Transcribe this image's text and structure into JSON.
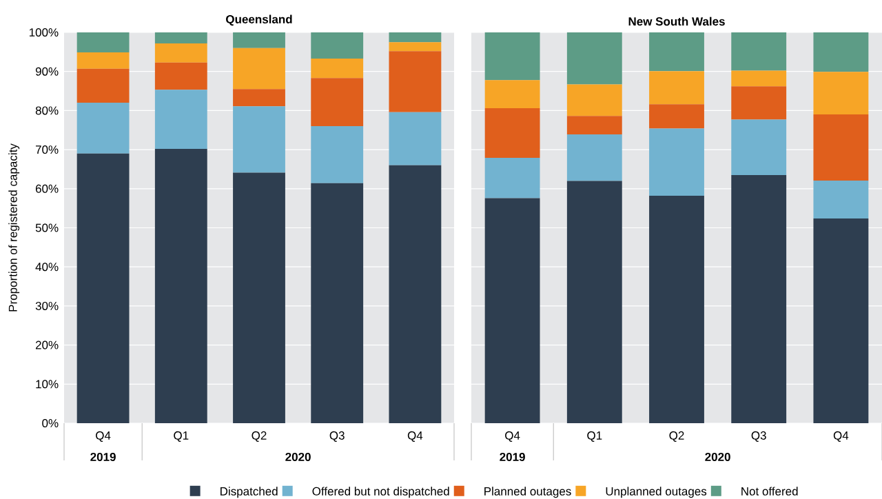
{
  "chart_data": [
    {
      "type": "bar",
      "title": "Queensland",
      "ylabel": "Proportion of registered capacity",
      "stacked": true,
      "grid": "y",
      "legend": "bottom",
      "categories": [
        "Q4",
        "Q1",
        "Q2",
        "Q3",
        "Q4"
      ],
      "annotations": [
        "2019",
        "2020"
      ],
      "ylim": [
        0,
        100
      ],
      "yticks": [
        {
          "value": 0,
          "label": "0%"
        },
        {
          "value": 10,
          "label": "10%"
        },
        {
          "value": 20,
          "label": "20%"
        },
        {
          "value": 30,
          "label": "30%"
        },
        {
          "value": 40,
          "label": "40%"
        },
        {
          "value": 50,
          "label": "50%"
        },
        {
          "value": 60,
          "label": "60%"
        },
        {
          "value": 70,
          "label": "70%"
        },
        {
          "value": 80,
          "label": "80%"
        },
        {
          "value": 90,
          "label": "90%"
        },
        {
          "value": 100,
          "label": "100%"
        }
      ],
      "series": [
        {
          "name": "Dispatched",
          "color": "#2e3e50",
          "values": [
            69.0,
            70.2,
            64.1,
            61.4,
            66.0
          ]
        },
        {
          "name": "Offered but not dispatched",
          "color": "#72b3d0",
          "values": [
            13.0,
            15.1,
            17.0,
            14.6,
            13.6
          ]
        },
        {
          "name": "Planned outages",
          "color": "#e05f1c",
          "values": [
            8.7,
            7.0,
            4.4,
            12.3,
            15.6
          ]
        },
        {
          "name": "Unplanned outages",
          "color": "#f7a526",
          "values": [
            4.2,
            4.9,
            10.5,
            5.0,
            2.3
          ]
        },
        {
          "name": "Not offered",
          "color": "#5d9c86",
          "values": [
            5.1,
            2.8,
            4.0,
            6.7,
            2.5
          ]
        }
      ]
    },
    {
      "type": "bar",
      "title": "New South Wales",
      "stacked": true,
      "grid": "y",
      "tick_labels": "x",
      "categories": [
        "Q4",
        "Q1",
        "Q2",
        "Q3",
        "Q4"
      ],
      "annotations": [
        "2019",
        "2020"
      ],
      "ylim": [
        0,
        100
      ],
      "yticks": [
        {
          "value": 0,
          "label": null
        },
        {
          "value": 10,
          "label": null
        },
        {
          "value": 20,
          "label": null
        },
        {
          "value": 30,
          "label": null
        },
        {
          "value": 40,
          "label": null
        },
        {
          "value": 50,
          "label": null
        },
        {
          "value": 60,
          "label": null
        },
        {
          "value": 70,
          "label": null
        },
        {
          "value": 80,
          "label": null
        },
        {
          "value": 90,
          "label": null
        },
        {
          "value": 100,
          "label": null
        }
      ],
      "series": [
        {
          "color": "#2e3e50",
          "values": [
            57.6,
            62.0,
            58.2,
            63.5,
            52.4
          ]
        },
        {
          "color": "#72b3d0",
          "values": [
            10.3,
            11.9,
            17.2,
            14.2,
            9.7
          ]
        },
        {
          "color": "#e05f1c",
          "values": [
            12.7,
            4.7,
            6.2,
            8.5,
            16.9
          ]
        },
        {
          "color": "#f7a526",
          "values": [
            7.2,
            8.1,
            8.5,
            4.0,
            10.9
          ]
        },
        {
          "color": "#5d9c86",
          "values": [
            12.2,
            13.3,
            9.9,
            9.8,
            10.1
          ]
        }
      ]
    }
  ]
}
